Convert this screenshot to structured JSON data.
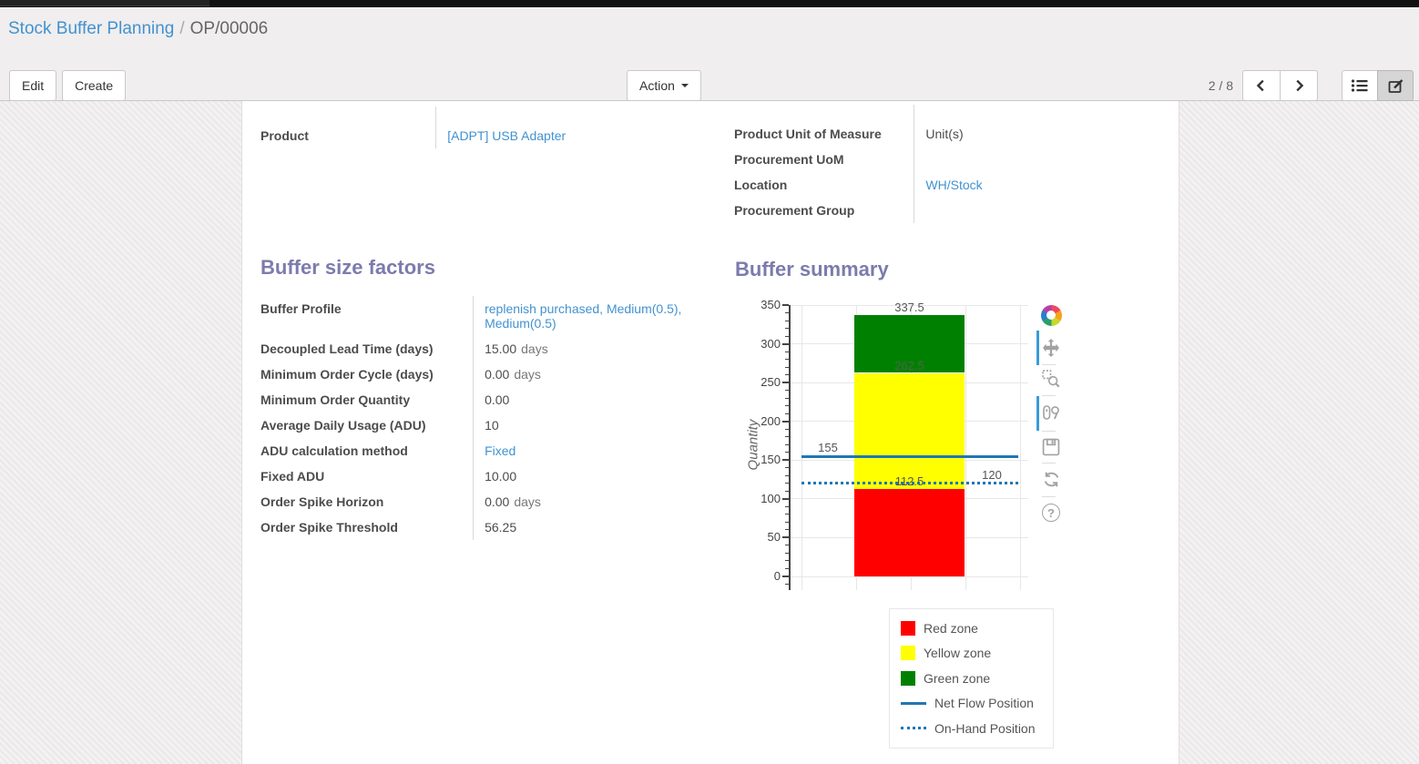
{
  "breadcrumb": {
    "parent": "Stock Buffer Planning",
    "separator": "/",
    "current": "OP/00006"
  },
  "control_panel": {
    "edit_label": "Edit",
    "create_label": "Create",
    "action_label": "Action",
    "pager_value": "2 / 8"
  },
  "form": {
    "header_left": [
      {
        "label": "Product",
        "value": "[ADPT] USB Adapter",
        "is_link": true
      }
    ],
    "header_right": [
      {
        "label": "Product Unit of Measure",
        "value": "Unit(s)",
        "is_link": false
      },
      {
        "label": "Procurement UoM",
        "value": "",
        "is_link": false
      },
      {
        "label": "Location",
        "value": "WH/Stock",
        "is_link": true
      },
      {
        "label": "Procurement Group",
        "value": "",
        "is_link": false
      }
    ],
    "section_left_title": "Buffer size factors",
    "section_right_title": "Buffer summary",
    "factors": [
      {
        "label": "Buffer Profile",
        "value": "replenish purchased, Medium(0.5), Medium(0.5)",
        "unit": "",
        "is_link": true
      },
      {
        "label": "Decoupled Lead Time (days)",
        "value": "15.00",
        "unit": "days",
        "is_link": false
      },
      {
        "label": "Minimum Order Cycle (days)",
        "value": "0.00",
        "unit": "days",
        "is_link": false
      },
      {
        "label": "Minimum Order Quantity",
        "value": "0.00",
        "unit": "",
        "is_link": false
      },
      {
        "label": "Average Daily Usage (ADU)",
        "value": "10",
        "unit": "",
        "is_link": false
      },
      {
        "label": "ADU calculation method",
        "value": "Fixed",
        "unit": "",
        "is_link": true
      },
      {
        "label": "Fixed ADU",
        "value": "10.00",
        "unit": "",
        "is_link": false
      },
      {
        "label": "Order Spike Horizon",
        "value": "0.00",
        "unit": "days",
        "is_link": false
      },
      {
        "label": "Order Spike Threshold",
        "value": "56.25",
        "unit": "",
        "is_link": false
      }
    ]
  },
  "chart_data": {
    "type": "bar",
    "title": "",
    "xlabel": "",
    "ylabel": "Quantity",
    "ylim": [
      -17,
      355
    ],
    "yticks": [
      0,
      50,
      100,
      150,
      200,
      250,
      300,
      350
    ],
    "minor_tick_step": 10,
    "grid": true,
    "legend_position": "below-right",
    "zones": [
      {
        "name": "Red zone",
        "color": "#ff0000",
        "from": 0,
        "to": 112.5,
        "boundary_label": "112.5"
      },
      {
        "name": "Yellow zone",
        "color": "#ffff00",
        "from": 112.5,
        "to": 262.5,
        "boundary_label": "262.5"
      },
      {
        "name": "Green zone",
        "color": "#008000",
        "from": 262.5,
        "to": 337.5,
        "boundary_label": "337.5"
      }
    ],
    "lines": [
      {
        "name": "Net Flow Position",
        "value": 155,
        "style": "solid",
        "color": "#1f77b4",
        "label": "155",
        "label_side": "left"
      },
      {
        "name": "On-Hand Position",
        "value": 120,
        "style": "dotted",
        "color": "#1f77b4",
        "label": "120",
        "label_side": "right"
      }
    ],
    "legend": [
      "Red zone",
      "Yellow zone",
      "Green zone",
      "Net Flow Position",
      "On-Hand Position"
    ]
  },
  "modebar_icons": [
    "plotly-logo",
    "pan",
    "zoom",
    "compare-hover",
    "save",
    "reset",
    "help"
  ],
  "colors": {
    "accent_purple": "#7c7bad",
    "link_blue": "#4292d0",
    "net_flow_blue": "#1f77b4",
    "red_zone": "#ff0000",
    "yellow_zone": "#ffff00",
    "green_zone": "#008000"
  }
}
